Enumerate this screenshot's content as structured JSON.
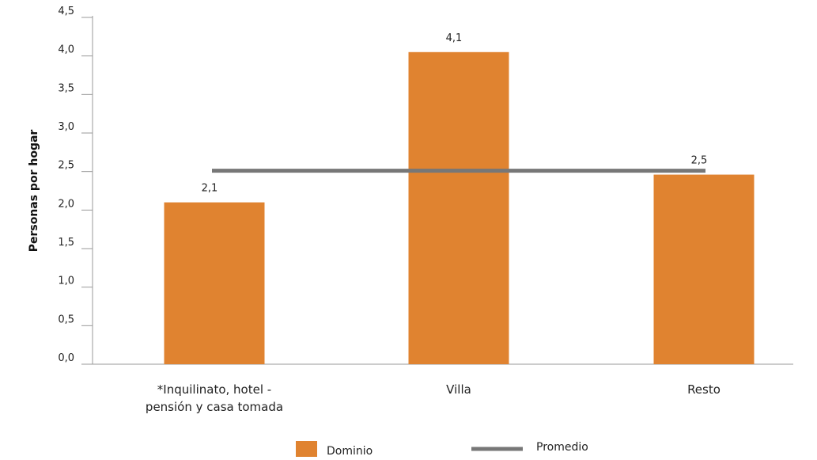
{
  "chart_data": {
    "type": "bar",
    "title": "",
    "xlabel": "",
    "ylabel": "Personas por hogar",
    "categories": [
      [
        "*Inquilinato, hotel -",
        "pensión y casa tomada"
      ],
      [
        "Villa"
      ],
      [
        "Resto"
      ]
    ],
    "series": [
      {
        "name": "Dominio",
        "values": [
          2.1,
          4.05,
          2.46
        ],
        "labels": [
          "2,1",
          "4,1",
          "2,5"
        ],
        "color": "#E08330"
      },
      {
        "name": "Promedio",
        "type": "line",
        "value": 2.5,
        "color": "#777777"
      }
    ],
    "ylim": [
      0,
      4.5
    ],
    "yticks": [
      "0,0",
      "0,5",
      "1,0",
      "1,5",
      "2,0",
      "2,5",
      "3,0",
      "3,5",
      "4,0",
      "4,5"
    ],
    "grid": false,
    "legend_position": "bottom"
  }
}
